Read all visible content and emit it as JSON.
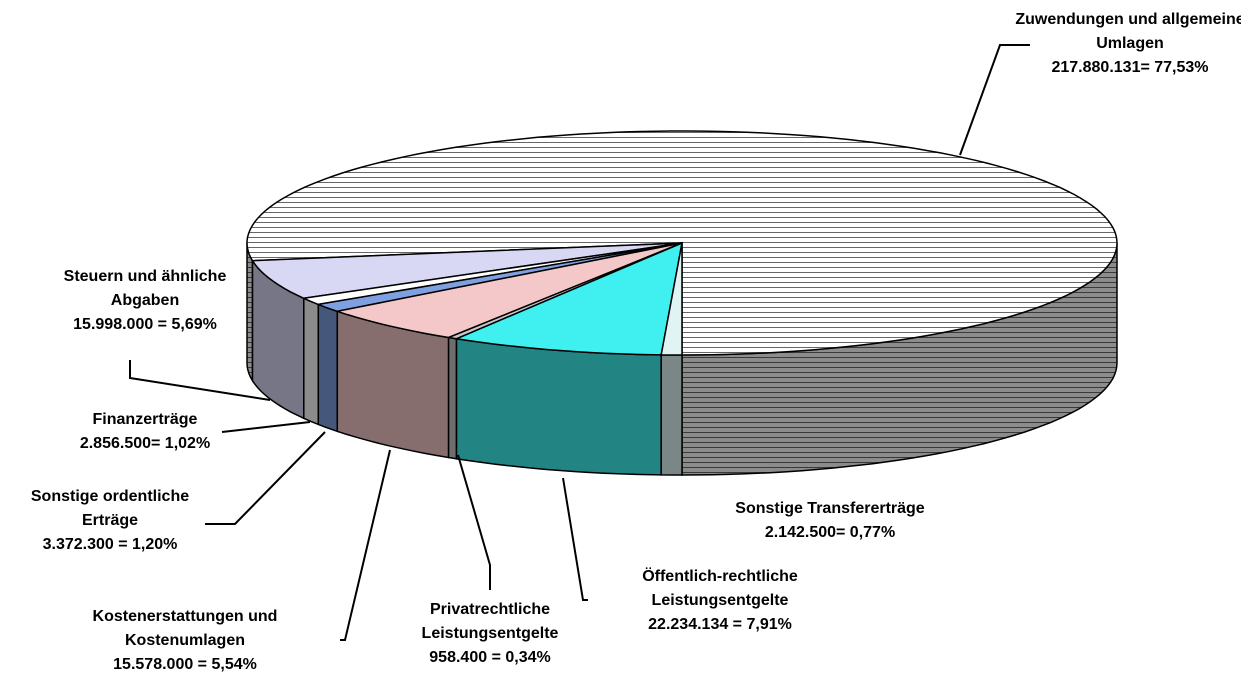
{
  "chart_data": {
    "type": "pie3d",
    "categories": [
      "Zuwendungen und allgemeine Umlagen",
      "Steuern und ähnliche Abgaben",
      "Finanzerträge",
      "Sonstige ordentliche Erträge",
      "Kostenerstattungen und Kostenumlagen",
      "Privatrechtliche Leistungsentgelte",
      "Öffentlich-rechtliche Leistungsentgelte",
      "Sonstige Transfererträge"
    ],
    "values": [
      217880131,
      15998000,
      2856500,
      3372300,
      15578000,
      958400,
      22234134,
      2142500
    ],
    "value_labels": [
      "217.880.131= 77,53%",
      "15.998.000 = 5,69%",
      "2.856.500= 1,02%",
      "3.372.300 = 1,20%",
      "15.578.000 = 5,54%",
      "958.400 = 0,34%",
      "22.234.134 = 7,91%",
      "2.142.500= 0,77%"
    ],
    "colors": [
      "#ffffff",
      "#d8d8f4",
      "#ffffff",
      "#7fa0e0",
      "#f4c8c8",
      "#c8c8c8",
      "#40f0f0",
      "#e0f4f4"
    ]
  }
}
